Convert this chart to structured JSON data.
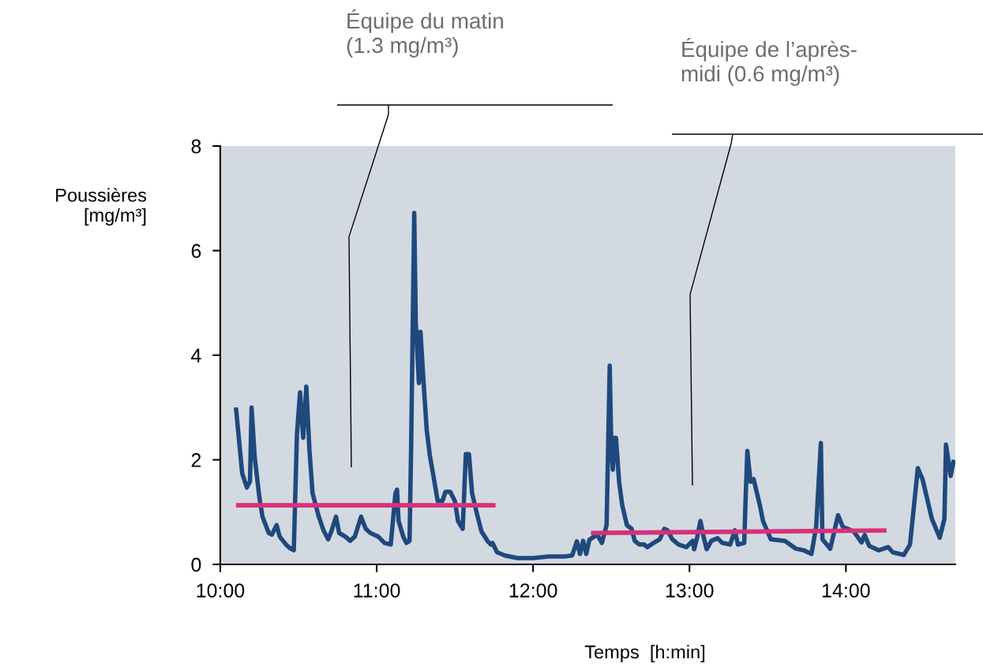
{
  "chart_data": {
    "type": "line",
    "xlabel": "Temps  [h:min]",
    "ylabel": "Poussières\n[mg/m³]",
    "xlim": [
      10,
      14.7
    ],
    "ylim": [
      0,
      8
    ],
    "xticks": [
      {
        "value": 10,
        "label": "10:00"
      },
      {
        "value": 11,
        "label": "11:00"
      },
      {
        "value": 12,
        "label": "12:00"
      },
      {
        "value": 13,
        "label": "13:00"
      },
      {
        "value": 14,
        "label": "14:00"
      }
    ],
    "yticks": [
      0,
      2,
      4,
      6,
      8
    ],
    "grid": false,
    "legend": false,
    "marker": "none",
    "line_style": "solid",
    "annotations": [
      "Équipe du matin\n(1.3 mg/m³)",
      "Équipe de l’après-\nmidi (0.6 mg/m³)"
    ],
    "series": [
      {
        "color": "#1f497d",
        "x": [
          10.1,
          10.14,
          10.17,
          10.19,
          10.2,
          10.22,
          10.25,
          10.27,
          10.31,
          10.33,
          10.36,
          10.38,
          10.42,
          10.45,
          10.47,
          10.49,
          10.51,
          10.53,
          10.55,
          10.57,
          10.59,
          10.63,
          10.66,
          10.69,
          10.71,
          10.74,
          10.76,
          10.8,
          10.83,
          10.86,
          10.9,
          10.93,
          10.96,
          11.01,
          11.05,
          11.09,
          11.12,
          11.13,
          11.14,
          11.17,
          11.19,
          11.21,
          11.22,
          11.24,
          11.25,
          11.27,
          11.28,
          11.3,
          11.32,
          11.34,
          11.36,
          11.39,
          11.42,
          11.44,
          11.47,
          11.5,
          11.52,
          11.55,
          11.57,
          11.59,
          11.61,
          11.64,
          11.67,
          11.71,
          11.73,
          11.74,
          11.77,
          11.82,
          11.9,
          12.0,
          12.1,
          12.2,
          12.25,
          12.28,
          12.3,
          12.32,
          12.34,
          12.36,
          12.39,
          12.41,
          12.44,
          12.47,
          12.49,
          12.5,
          12.51,
          12.52,
          12.53,
          12.55,
          12.57,
          12.6,
          12.63,
          12.65,
          12.68,
          12.71,
          12.73,
          12.77,
          12.81,
          12.84,
          12.86,
          12.89,
          12.93,
          12.98,
          13.02,
          13.03,
          13.05,
          13.07,
          13.09,
          13.11,
          13.14,
          13.18,
          13.21,
          13.26,
          13.29,
          13.31,
          13.35,
          13.36,
          13.37,
          13.39,
          13.41,
          13.45,
          13.47,
          13.52,
          13.61,
          13.68,
          13.73,
          13.78,
          13.81,
          13.84,
          13.85,
          13.9,
          13.95,
          13.98,
          14.05,
          14.1,
          14.12,
          14.15,
          14.21,
          14.27,
          14.3,
          14.37,
          14.41,
          14.46,
          14.49,
          14.55,
          14.6,
          14.63,
          14.64,
          14.67,
          14.69
        ],
        "values": [
          3.0,
          1.74,
          1.47,
          1.59,
          3.0,
          2.05,
          1.28,
          0.91,
          0.6,
          0.57,
          0.75,
          0.53,
          0.38,
          0.3,
          0.27,
          2.48,
          3.29,
          2.42,
          3.4,
          2.19,
          1.36,
          0.91,
          0.65,
          0.48,
          0.63,
          0.91,
          0.6,
          0.53,
          0.45,
          0.53,
          0.91,
          0.68,
          0.6,
          0.53,
          0.41,
          0.38,
          1.36,
          1.43,
          0.83,
          0.53,
          0.41,
          0.45,
          2.19,
          6.72,
          4.62,
          3.47,
          4.45,
          3.47,
          2.57,
          2.08,
          1.74,
          1.21,
          1.21,
          1.39,
          1.39,
          1.21,
          0.83,
          0.68,
          2.11,
          2.11,
          1.36,
          0.98,
          0.63,
          0.44,
          0.38,
          0.41,
          0.23,
          0.17,
          0.12,
          0.12,
          0.15,
          0.15,
          0.17,
          0.44,
          0.2,
          0.45,
          0.2,
          0.47,
          0.53,
          0.57,
          0.41,
          0.75,
          3.8,
          2.26,
          1.81,
          2.42,
          2.42,
          1.58,
          1.13,
          0.75,
          0.68,
          0.45,
          0.38,
          0.38,
          0.33,
          0.41,
          0.48,
          0.68,
          0.65,
          0.48,
          0.38,
          0.33,
          0.45,
          0.29,
          0.53,
          0.83,
          0.53,
          0.29,
          0.45,
          0.5,
          0.41,
          0.38,
          0.65,
          0.38,
          0.41,
          1.36,
          2.17,
          1.58,
          1.63,
          1.13,
          0.83,
          0.48,
          0.45,
          0.3,
          0.27,
          0.2,
          0.72,
          2.32,
          0.48,
          0.3,
          0.94,
          0.72,
          0.63,
          0.42,
          0.56,
          0.35,
          0.27,
          0.33,
          0.23,
          0.18,
          0.38,
          1.84,
          1.63,
          0.87,
          0.51,
          0.87,
          2.29,
          1.69,
          2.0
        ]
      },
      {
        "color": "#d6317a",
        "x": [
          10.1,
          11.76
        ],
        "values": [
          1.13,
          1.13
        ]
      },
      {
        "color": "#d6317a",
        "x": [
          12.37,
          14.26
        ],
        "values": [
          0.6,
          0.65
        ]
      }
    ]
  }
}
